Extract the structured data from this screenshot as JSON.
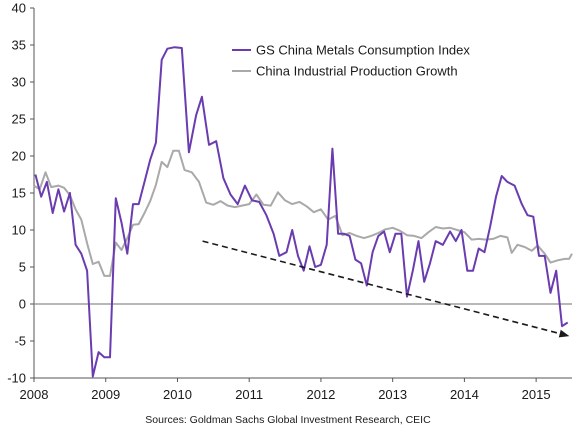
{
  "source_note": "Sources: Goldman Sachs Global Investment Research, CEIC",
  "chart_data": {
    "type": "line",
    "title": "",
    "xlabel": "",
    "ylabel": "",
    "x_range": [
      2008.0,
      2015.5
    ],
    "ylim": [
      -10,
      40
    ],
    "y_ticks": [
      -10,
      -5,
      0,
      5,
      10,
      15,
      20,
      25,
      30,
      35,
      40
    ],
    "x_ticks": [
      {
        "label": "2008",
        "x": 2008.0
      },
      {
        "label": "2009",
        "x": 2009.0
      },
      {
        "label": "2010",
        "x": 2010.0
      },
      {
        "label": "2011",
        "x": 2011.0
      },
      {
        "label": "2012",
        "x": 2012.0
      },
      {
        "label": "2013",
        "x": 2013.0
      },
      {
        "label": "2014",
        "x": 2014.0
      },
      {
        "label": "2015",
        "x": 2015.0
      }
    ],
    "grid": false,
    "legend_position": "top-center",
    "series": [
      {
        "name": "GS China Metals Consumption Index",
        "color": "#6a3cb0",
        "points": [
          [
            2008.02,
            17.5
          ],
          [
            2008.1,
            14.5
          ],
          [
            2008.18,
            16.5
          ],
          [
            2008.26,
            12.3
          ],
          [
            2008.34,
            15.5
          ],
          [
            2008.42,
            12.5
          ],
          [
            2008.5,
            15.0
          ],
          [
            2008.58,
            8.0
          ],
          [
            2008.66,
            6.8
          ],
          [
            2008.74,
            4.5
          ],
          [
            2008.82,
            -9.8
          ],
          [
            2008.9,
            -6.5
          ],
          [
            2008.98,
            -7.2
          ],
          [
            2009.06,
            -7.2
          ],
          [
            2009.14,
            14.3
          ],
          [
            2009.22,
            11.0
          ],
          [
            2009.3,
            6.8
          ],
          [
            2009.38,
            13.5
          ],
          [
            2009.46,
            13.5
          ],
          [
            2009.54,
            16.5
          ],
          [
            2009.62,
            19.5
          ],
          [
            2009.7,
            21.8
          ],
          [
            2009.78,
            33.0
          ],
          [
            2009.86,
            34.5
          ],
          [
            2009.96,
            34.7
          ],
          [
            2010.06,
            34.6
          ],
          [
            2010.16,
            20.5
          ],
          [
            2010.26,
            25.5
          ],
          [
            2010.34,
            28.0
          ],
          [
            2010.44,
            21.5
          ],
          [
            2010.54,
            22.0
          ],
          [
            2010.64,
            17.0
          ],
          [
            2010.74,
            14.8
          ],
          [
            2010.84,
            13.5
          ],
          [
            2010.94,
            16.0
          ],
          [
            2011.04,
            14.0
          ],
          [
            2011.14,
            13.8
          ],
          [
            2011.24,
            12.0
          ],
          [
            2011.34,
            9.5
          ],
          [
            2011.42,
            6.5
          ],
          [
            2011.52,
            7.0
          ],
          [
            2011.6,
            10.0
          ],
          [
            2011.68,
            6.5
          ],
          [
            2011.76,
            4.5
          ],
          [
            2011.84,
            7.8
          ],
          [
            2011.92,
            5.0
          ],
          [
            2012.0,
            5.3
          ],
          [
            2012.08,
            8.0
          ],
          [
            2012.16,
            21.0
          ],
          [
            2012.24,
            9.5
          ],
          [
            2012.32,
            9.5
          ],
          [
            2012.4,
            9.2
          ],
          [
            2012.48,
            6.0
          ],
          [
            2012.56,
            5.5
          ],
          [
            2012.64,
            2.5
          ],
          [
            2012.72,
            7.0
          ],
          [
            2012.8,
            9.2
          ],
          [
            2012.88,
            9.8
          ],
          [
            2012.96,
            7.0
          ],
          [
            2013.04,
            9.5
          ],
          [
            2013.12,
            9.5
          ],
          [
            2013.2,
            1.0
          ],
          [
            2013.28,
            4.5
          ],
          [
            2013.36,
            8.5
          ],
          [
            2013.44,
            3.0
          ],
          [
            2013.52,
            5.5
          ],
          [
            2013.6,
            8.5
          ],
          [
            2013.7,
            8.0
          ],
          [
            2013.8,
            9.8
          ],
          [
            2013.88,
            8.5
          ],
          [
            2013.96,
            10.0
          ],
          [
            2014.04,
            4.5
          ],
          [
            2014.12,
            4.5
          ],
          [
            2014.2,
            7.5
          ],
          [
            2014.28,
            7.0
          ],
          [
            2014.36,
            10.5
          ],
          [
            2014.44,
            14.5
          ],
          [
            2014.52,
            17.3
          ],
          [
            2014.6,
            16.5
          ],
          [
            2014.7,
            16.0
          ],
          [
            2014.8,
            13.5
          ],
          [
            2014.88,
            12.0
          ],
          [
            2014.96,
            11.8
          ],
          [
            2015.04,
            6.5
          ],
          [
            2015.12,
            6.5
          ],
          [
            2015.2,
            1.5
          ],
          [
            2015.28,
            4.5
          ],
          [
            2015.36,
            -3.0
          ],
          [
            2015.44,
            -2.5
          ]
        ]
      },
      {
        "name": "China Industrial Production Growth",
        "color": "#a9a9a9",
        "points": [
          [
            2008.0,
            16.0
          ],
          [
            2008.08,
            15.5
          ],
          [
            2008.16,
            17.8
          ],
          [
            2008.24,
            15.8
          ],
          [
            2008.34,
            16.0
          ],
          [
            2008.42,
            15.7
          ],
          [
            2008.5,
            14.7
          ],
          [
            2008.58,
            12.8
          ],
          [
            2008.66,
            11.4
          ],
          [
            2008.74,
            8.2
          ],
          [
            2008.82,
            5.4
          ],
          [
            2008.9,
            5.7
          ],
          [
            2008.98,
            3.8
          ],
          [
            2009.06,
            3.8
          ],
          [
            2009.14,
            8.3
          ],
          [
            2009.22,
            7.3
          ],
          [
            2009.3,
            8.9
          ],
          [
            2009.38,
            10.7
          ],
          [
            2009.46,
            10.8
          ],
          [
            2009.54,
            12.3
          ],
          [
            2009.62,
            13.9
          ],
          [
            2009.7,
            16.1
          ],
          [
            2009.78,
            19.2
          ],
          [
            2009.86,
            18.5
          ],
          [
            2009.94,
            20.7
          ],
          [
            2010.02,
            20.7
          ],
          [
            2010.1,
            18.1
          ],
          [
            2010.2,
            17.8
          ],
          [
            2010.3,
            16.5
          ],
          [
            2010.4,
            13.7
          ],
          [
            2010.5,
            13.4
          ],
          [
            2010.6,
            13.9
          ],
          [
            2010.7,
            13.3
          ],
          [
            2010.8,
            13.1
          ],
          [
            2010.9,
            13.3
          ],
          [
            2011.0,
            13.5
          ],
          [
            2011.1,
            14.8
          ],
          [
            2011.2,
            13.4
          ],
          [
            2011.3,
            13.3
          ],
          [
            2011.4,
            15.1
          ],
          [
            2011.5,
            14.0
          ],
          [
            2011.6,
            13.5
          ],
          [
            2011.7,
            13.8
          ],
          [
            2011.8,
            13.2
          ],
          [
            2011.9,
            12.4
          ],
          [
            2012.0,
            12.8
          ],
          [
            2012.1,
            11.4
          ],
          [
            2012.2,
            11.9
          ],
          [
            2012.3,
            9.3
          ],
          [
            2012.4,
            9.6
          ],
          [
            2012.5,
            9.2
          ],
          [
            2012.6,
            8.9
          ],
          [
            2012.7,
            9.2
          ],
          [
            2012.8,
            9.6
          ],
          [
            2012.9,
            10.1
          ],
          [
            2013.0,
            10.3
          ],
          [
            2013.1,
            9.9
          ],
          [
            2013.2,
            9.3
          ],
          [
            2013.3,
            9.2
          ],
          [
            2013.4,
            8.9
          ],
          [
            2013.5,
            9.7
          ],
          [
            2013.6,
            10.4
          ],
          [
            2013.7,
            10.2
          ],
          [
            2013.8,
            10.3
          ],
          [
            2013.9,
            10.0
          ],
          [
            2014.0,
            9.7
          ],
          [
            2014.1,
            8.7
          ],
          [
            2014.2,
            8.8
          ],
          [
            2014.3,
            8.7
          ],
          [
            2014.4,
            8.8
          ],
          [
            2014.5,
            9.2
          ],
          [
            2014.6,
            9.0
          ],
          [
            2014.66,
            6.9
          ],
          [
            2014.74,
            8.0
          ],
          [
            2014.84,
            7.7
          ],
          [
            2014.94,
            7.2
          ],
          [
            2015.02,
            7.9
          ],
          [
            2015.12,
            6.8
          ],
          [
            2015.2,
            5.6
          ],
          [
            2015.3,
            5.9
          ],
          [
            2015.4,
            6.1
          ],
          [
            2015.46,
            6.1
          ],
          [
            2015.5,
            6.8
          ]
        ]
      }
    ],
    "trend_arrow": {
      "style": "dashed-arrow",
      "color": "#1a1a1a",
      "from": [
        2010.35,
        8.5
      ],
      "to": [
        2015.45,
        -4.3
      ]
    }
  }
}
